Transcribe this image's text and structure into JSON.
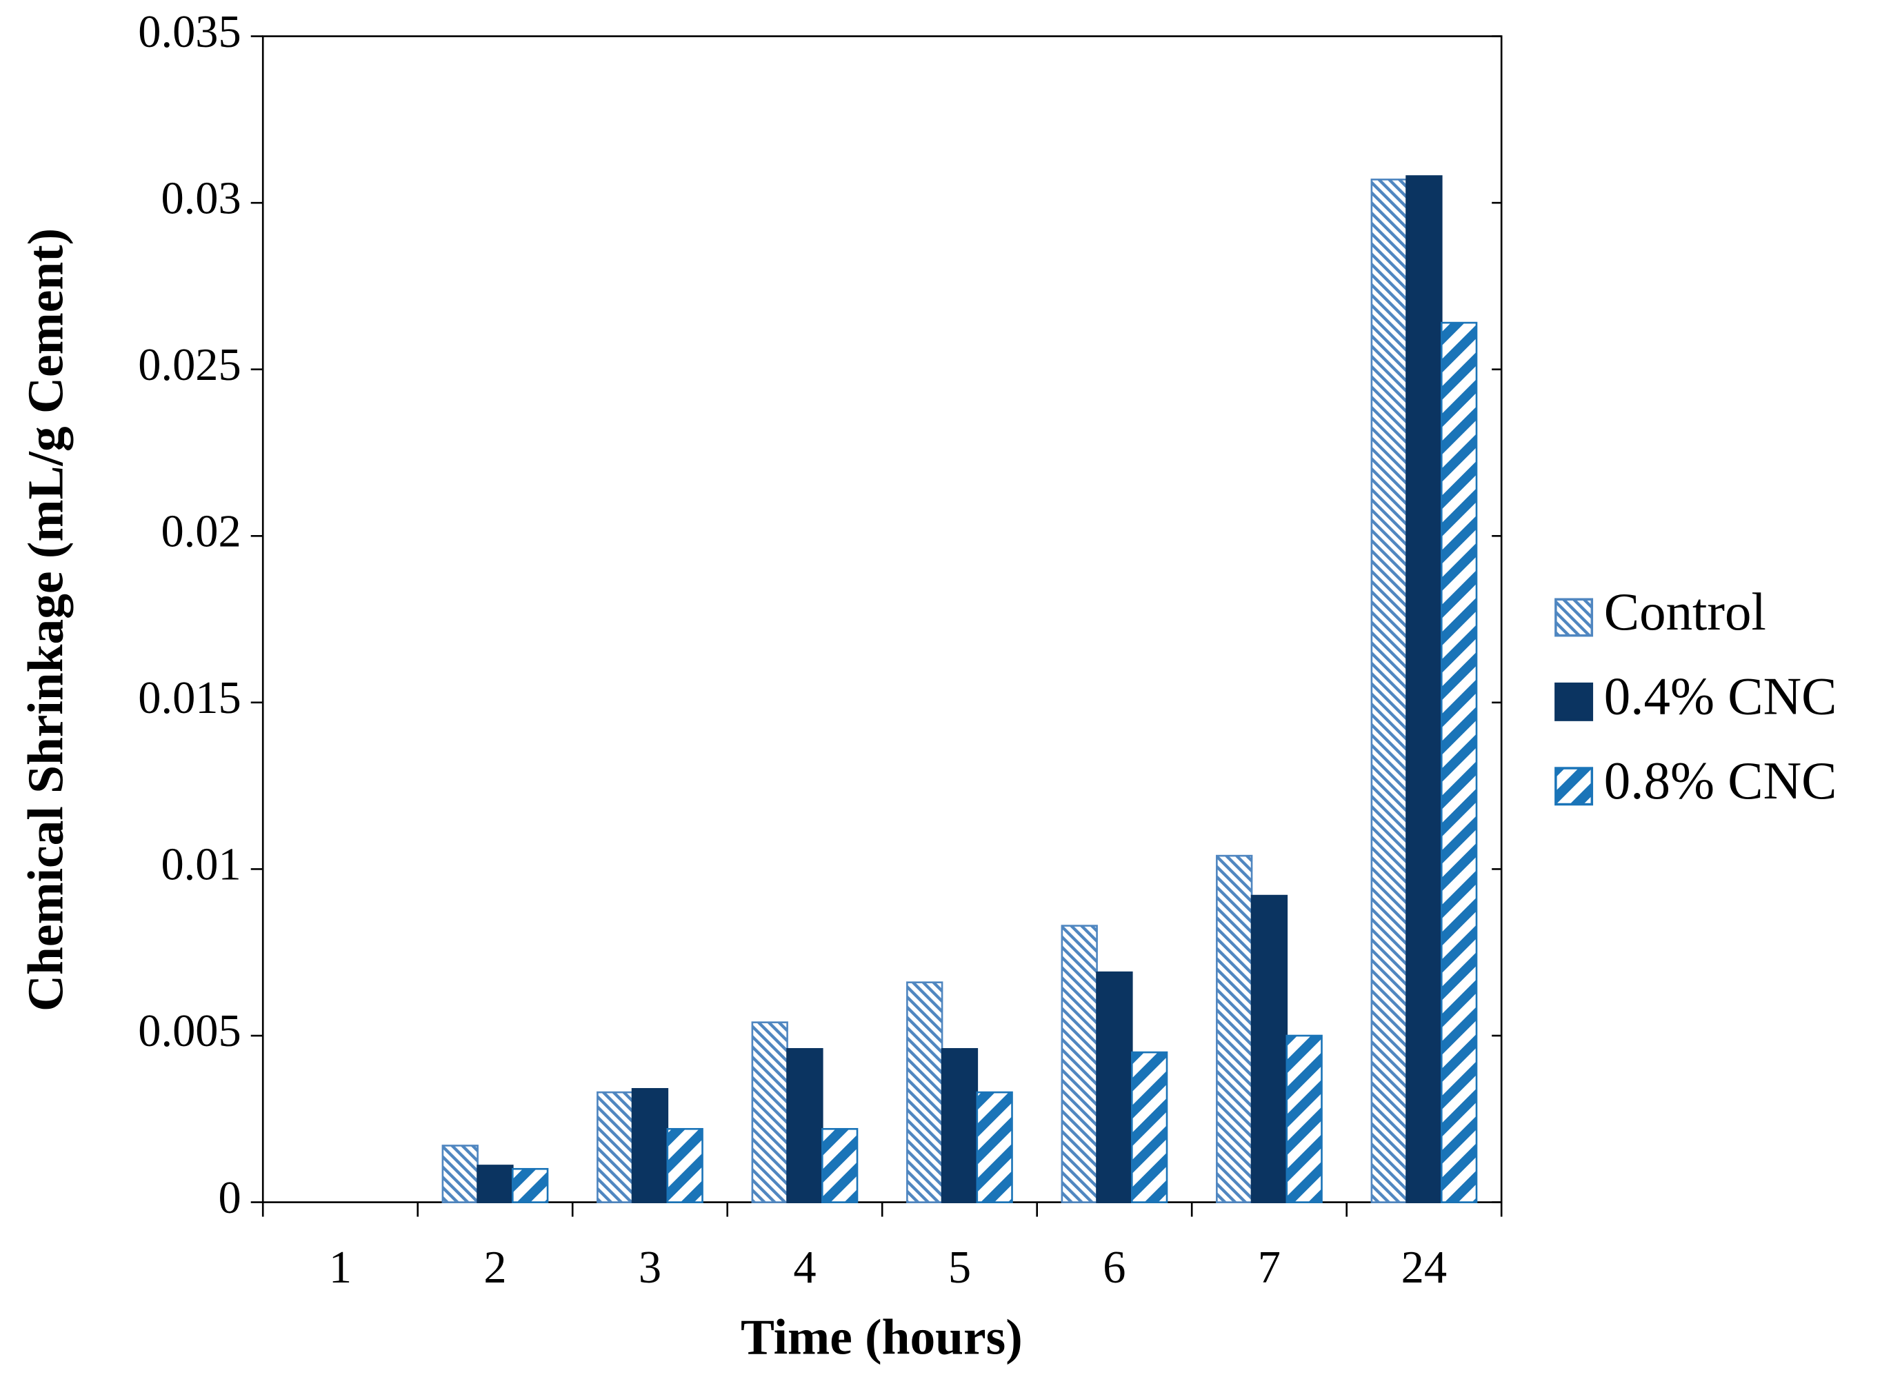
{
  "chart_data": {
    "type": "bar",
    "x_label": "Time (hours)",
    "y_label": "Chemical Shrinkage (mL/g Cement)",
    "categories": [
      "1",
      "2",
      "3",
      "4",
      "5",
      "6",
      "7",
      "24"
    ],
    "series": [
      {
        "name": "Control",
        "color": "#4f86c0",
        "pattern": "fine-diagonal",
        "values": [
          0,
          0.0017,
          0.0033,
          0.0054,
          0.0066,
          0.0083,
          0.0104,
          0.0307
        ]
      },
      {
        "name": "0.4% CNC",
        "color": "#0b3461",
        "pattern": "solid",
        "values": [
          0,
          0.0011,
          0.0034,
          0.0046,
          0.0046,
          0.0069,
          0.0092,
          0.0308
        ]
      },
      {
        "name": "0.8% CNC",
        "color": "#1a74b8",
        "pattern": "wide-diagonal",
        "values": [
          0,
          0.001,
          0.0022,
          0.0022,
          0.0033,
          0.0045,
          0.005,
          0.0264
        ]
      }
    ],
    "ylim": [
      0,
      0.035
    ],
    "yticks": [
      0,
      0.005,
      0.01,
      0.015,
      0.02,
      0.025,
      0.03,
      0.035
    ],
    "grid": false,
    "legend": "right"
  }
}
